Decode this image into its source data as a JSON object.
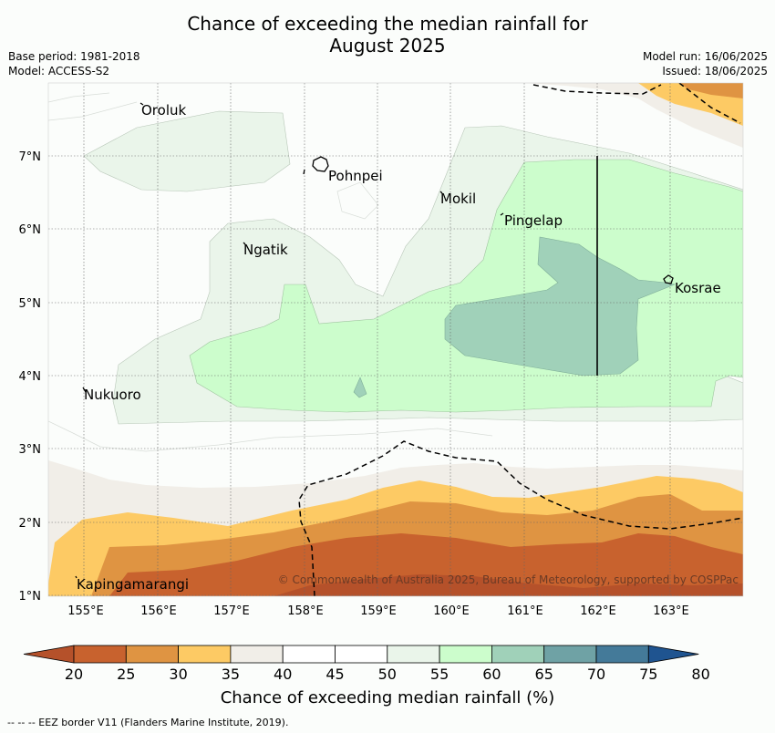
{
  "title": {
    "line1": "Chance of exceeding the median rainfall for",
    "line2": "August 2025"
  },
  "meta": {
    "base_period": "Base period: 1981-2018",
    "model": "Model: ACCESS-S2",
    "model_run": "Model run: 16/06/2025",
    "issued": "Issued: 18/06/2025"
  },
  "map": {
    "lon_ticks": [
      "155°E",
      "156°E",
      "157°E",
      "158°E",
      "159°E",
      "160°E",
      "161°E",
      "162°E",
      "163°E"
    ],
    "lat_ticks": [
      "7°N",
      "6°N",
      "5°N",
      "4°N",
      "3°N",
      "2°N",
      "1°N"
    ],
    "places": [
      "Oroluk",
      "Pohnpei",
      "Mokil",
      "Pingelap",
      "Ngatik",
      "Kosrae",
      "Nukuoro",
      "Kapingamarangi"
    ],
    "copyright": "© Commonwealth of Australia 2025, Bureau of Meteorology, supported by COSPPac"
  },
  "colorbar": {
    "ticks": [
      "20",
      "25",
      "30",
      "35",
      "40",
      "45",
      "50",
      "55",
      "60",
      "65",
      "70",
      "75",
      "80"
    ],
    "colors": [
      "#b5512a",
      "#c8622e",
      "#df9442",
      "#fdca64",
      "#f1eee8",
      "#ffffff",
      "#ffffff",
      "#eaf5ea",
      "#ccfdcc",
      "#a0d1b9",
      "#6fa2a5",
      "#447a99",
      "#1f5490"
    ],
    "label": "Chance of exceeding median rainfall (%)"
  },
  "footnote": "--  --  -- EEZ border V11 (Flanders Marine Institute, 2019)."
}
